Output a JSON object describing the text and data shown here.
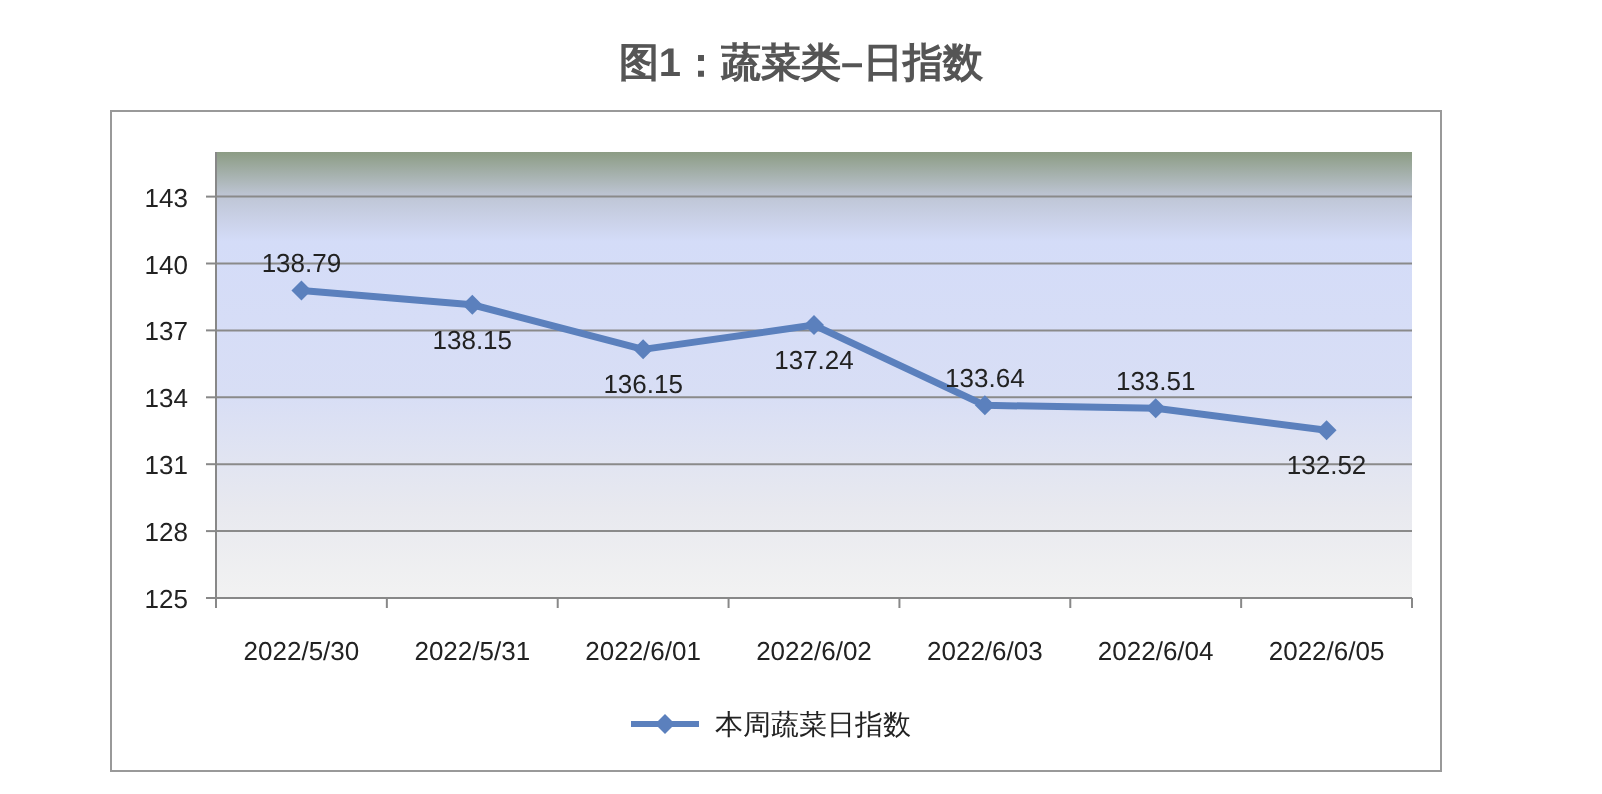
{
  "chart_data": {
    "type": "line",
    "title": "图1：蔬菜类–日指数",
    "categories": [
      "2022/5/30",
      "2022/5/31",
      "2022/6/01",
      "2022/6/02",
      "2022/6/03",
      "2022/6/04",
      "2022/6/05"
    ],
    "series": [
      {
        "name": "本周蔬菜日指数",
        "color": "#5b80bd",
        "values": [
          138.79,
          138.15,
          136.15,
          137.24,
          133.64,
          133.51,
          132.52
        ]
      }
    ],
    "ylim": [
      125,
      145
    ],
    "yticks": [
      125,
      128,
      131,
      134,
      137,
      140,
      143
    ],
    "grid": "y",
    "legend": "bottom",
    "marker": "diamond",
    "line_style": "solid",
    "data_labels": true
  }
}
